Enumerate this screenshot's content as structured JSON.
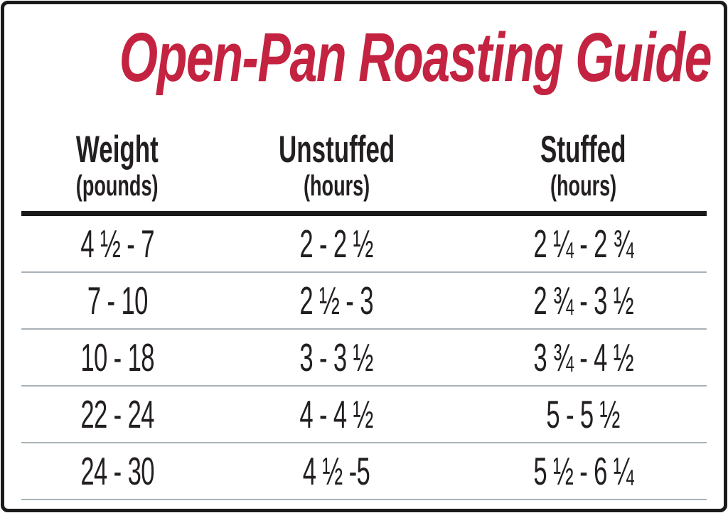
{
  "title": "Open-Pan Roasting Guide",
  "colors": {
    "title_red": "#c32340",
    "text_dark": "#231f20",
    "separator": "#a9b2b8",
    "frame": "#1a1a1a"
  },
  "chart_data": {
    "type": "table",
    "title": "Open-Pan Roasting Guide",
    "columns": [
      {
        "label": "Weight",
        "unit": "(pounds)"
      },
      {
        "label": "Unstuffed",
        "unit": "(hours)"
      },
      {
        "label": "Stuffed",
        "unit": "(hours)"
      }
    ],
    "rows": [
      [
        "4 ½ - 7",
        "2 - 2 ½",
        "2 ¼ - 2 ¾"
      ],
      [
        "7 - 10",
        "2 ½ - 3",
        "2 ¾ - 3 ½"
      ],
      [
        "10 - 18",
        "3 - 3 ½",
        "3 ¾ - 4 ½"
      ],
      [
        "22 - 24",
        "4 - 4 ½",
        "5 - 5 ½"
      ],
      [
        "24 - 30",
        "4 ½ -5",
        "5 ½ - 6 ¼"
      ]
    ]
  }
}
